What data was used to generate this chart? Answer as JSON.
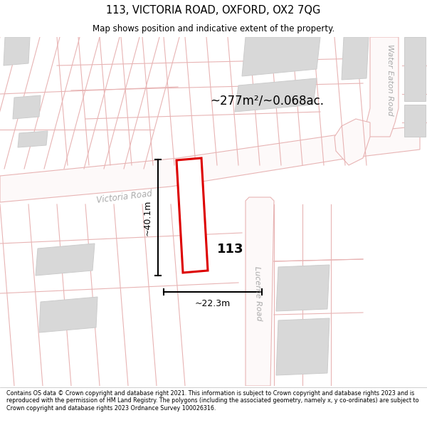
{
  "title": "113, VICTORIA ROAD, OXFORD, OX2 7QG",
  "subtitle": "Map shows position and indicative extent of the property.",
  "area_label": "~277m²/~0.068ac.",
  "height_label": "~40.1m",
  "width_label": "~22.3m",
  "number_label": "113",
  "bg_color": "#ffffff",
  "road_line_color": "#e8b4b4",
  "building_fill": "#d8d8d8",
  "building_stroke": "#cccccc",
  "plot_stroke": "#dd0000",
  "plot_fill": "#ffffff",
  "dim_color": "#000000",
  "footer_text": "Contains OS data © Crown copyright and database right 2021. This information is subject to Crown copyright and database rights 2023 and is reproduced with the permission of HM Land Registry. The polygons (including the associated geometry, namely x, y co-ordinates) are subject to Crown copyright and database rights 2023 Ordnance Survey 100026316.",
  "road_label_color": "#aaaaaa",
  "map_bg": "#ffffff"
}
